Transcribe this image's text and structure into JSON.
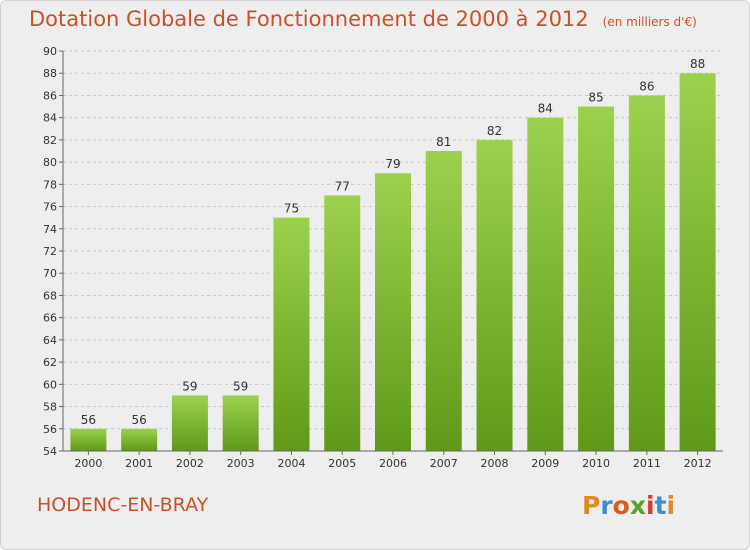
{
  "header": {
    "title": "Dotation Globale de Fonctionnement de 2000 à 2012",
    "unit": "(en milliers d'€)"
  },
  "footer": {
    "commune": "HODENC-EN-BRAY",
    "logo_letters": [
      "P",
      "r",
      "o",
      "x",
      "i",
      "t",
      "i"
    ]
  },
  "colors": {
    "title": "#c8512a",
    "bar_top": "#9cd14e",
    "bar_bottom": "#5e9a18",
    "background": "#eeeeee"
  },
  "chart_data": {
    "type": "bar",
    "title": "Dotation Globale de Fonctionnement de 2000 à 2012",
    "xlabel": "",
    "ylabel": "",
    "categories": [
      "2000",
      "2001",
      "2002",
      "2003",
      "2004",
      "2005",
      "2006",
      "2007",
      "2008",
      "2009",
      "2010",
      "2011",
      "2012"
    ],
    "values": [
      56,
      56,
      59,
      59,
      75,
      77,
      79,
      81,
      82,
      84,
      85,
      86,
      88
    ],
    "ylim": [
      54,
      90
    ],
    "yticks": [
      54,
      56,
      58,
      60,
      62,
      64,
      66,
      68,
      70,
      72,
      74,
      76,
      78,
      80,
      82,
      84,
      86,
      88,
      90
    ],
    "grid": true,
    "legend": "none"
  }
}
